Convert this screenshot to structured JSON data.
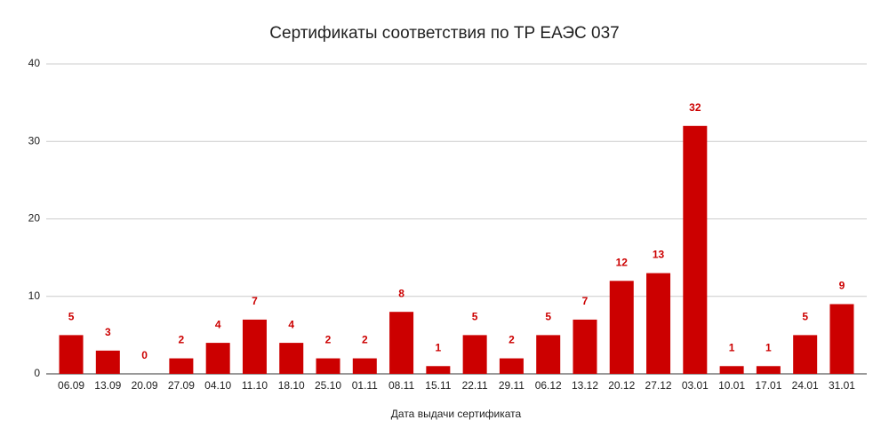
{
  "chart_data": {
    "type": "bar",
    "title": "Сертификаты соответствия по ТР ЕАЭС 037",
    "x_label": "Дата выдачи сертификата",
    "categories": [
      "06.09",
      "13.09",
      "20.09",
      "27.09",
      "04.10",
      "11.10",
      "18.10",
      "25.10",
      "01.11",
      "08.11",
      "15.11",
      "22.11",
      "29.11",
      "06.12",
      "13.12",
      "20.12",
      "27.12",
      "03.01",
      "10.01",
      "17.01",
      "24.01",
      "31.01"
    ],
    "values": [
      5,
      3,
      0,
      2,
      4,
      7,
      4,
      2,
      2,
      8,
      1,
      5,
      2,
      5,
      7,
      12,
      13,
      32,
      1,
      1,
      5,
      9
    ],
    "color": "#cc0000",
    "ylim": [
      0,
      40
    ],
    "yticks": [
      0,
      10,
      20,
      30,
      40
    ],
    "grid": true,
    "data_labels": true
  }
}
